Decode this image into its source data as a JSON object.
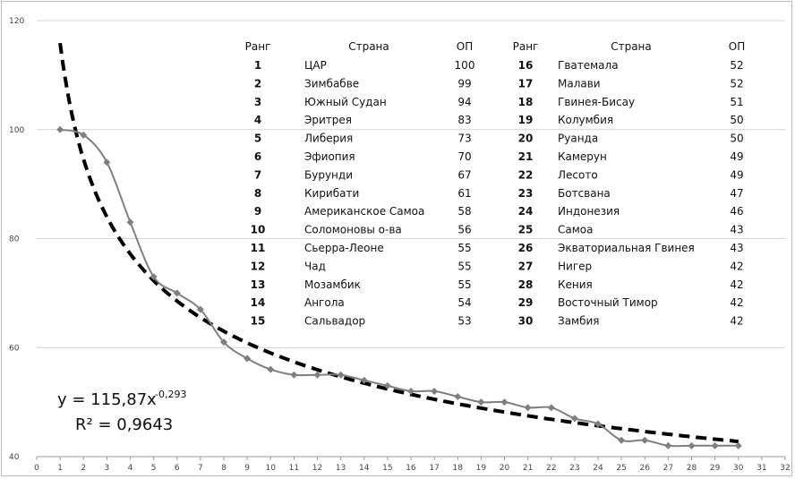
{
  "chart_data": {
    "type": "line",
    "xlim": [
      0,
      32
    ],
    "ylim": [
      40,
      120
    ],
    "x_ticks": [
      0,
      1,
      2,
      3,
      4,
      5,
      6,
      7,
      8,
      9,
      10,
      11,
      12,
      13,
      14,
      15,
      16,
      17,
      18,
      19,
      20,
      21,
      22,
      23,
      24,
      25,
      26,
      27,
      28,
      29,
      30,
      31,
      32
    ],
    "y_ticks": [
      40,
      60,
      80,
      100,
      120
    ],
    "grid": "horizontal",
    "series": [
      {
        "kind": "data",
        "color": "#7f7f7f",
        "marker": "diamond",
        "x": [
          1,
          2,
          3,
          4,
          5,
          6,
          7,
          8,
          9,
          10,
          11,
          12,
          13,
          14,
          15,
          16,
          17,
          18,
          19,
          20,
          21,
          22,
          23,
          24,
          25,
          26,
          27,
          28,
          29,
          30
        ],
        "values": [
          100,
          99,
          94,
          83,
          73,
          70,
          67,
          61,
          58,
          56,
          55,
          55,
          55,
          54,
          53,
          52,
          52,
          51,
          50,
          50,
          49,
          49,
          47,
          46,
          43,
          43,
          42,
          42,
          42,
          42
        ]
      },
      {
        "kind": "trendline",
        "style": "dashed",
        "color": "#000000",
        "coefficient": 115.87,
        "exponent": -0.293
      }
    ],
    "formula": {
      "prefix": "y = 115,87x",
      "exponent": "-0,293",
      "r2": "R² = 0,9643"
    },
    "table": {
      "headers": [
        "Ранг",
        "Страна",
        "ОП",
        "Ранг",
        "Страна",
        "ОП"
      ],
      "left_rows": [
        [
          "1",
          "ЦАР",
          "100"
        ],
        [
          "2",
          "Зимбабве",
          "99"
        ],
        [
          "3",
          "Южный Судан",
          "94"
        ],
        [
          "4",
          "Эритрея",
          "83"
        ],
        [
          "5",
          "Либерия",
          "73"
        ],
        [
          "6",
          "Эфиопия",
          "70"
        ],
        [
          "7",
          "Бурунди",
          "67"
        ],
        [
          "8",
          "Кирибати",
          "61"
        ],
        [
          "9",
          "Американское Самоа",
          "58"
        ],
        [
          "10",
          "Соломоновы о-ва",
          "56"
        ],
        [
          "11",
          "Сьерра-Леоне",
          "55"
        ],
        [
          "12",
          "Чад",
          "55"
        ],
        [
          "13",
          "Мозамбик",
          "55"
        ],
        [
          "14",
          "Ангола",
          "54"
        ],
        [
          "15",
          "Сальвадор",
          "53"
        ]
      ],
      "right_rows": [
        [
          "16",
          "Гватемала",
          "52"
        ],
        [
          "17",
          "Малави",
          "52"
        ],
        [
          "18",
          "Гвинея-Бисау",
          "51"
        ],
        [
          "19",
          "Колумбия",
          "50"
        ],
        [
          "20",
          "Руанда",
          "50"
        ],
        [
          "21",
          "Камерун",
          "49"
        ],
        [
          "22",
          "Лесото",
          "49"
        ],
        [
          "23",
          "Ботсвана",
          "47"
        ],
        [
          "24",
          "Индонезия",
          "46"
        ],
        [
          "25",
          "Самоа",
          "43"
        ],
        [
          "26",
          "Экваториальная Гвинея",
          "43"
        ],
        [
          "27",
          "Нигер",
          "42"
        ],
        [
          "28",
          "Кения",
          "42"
        ],
        [
          "29",
          "Восточный Тимор",
          "42"
        ],
        [
          "30",
          "Замбия",
          "42"
        ]
      ]
    }
  }
}
